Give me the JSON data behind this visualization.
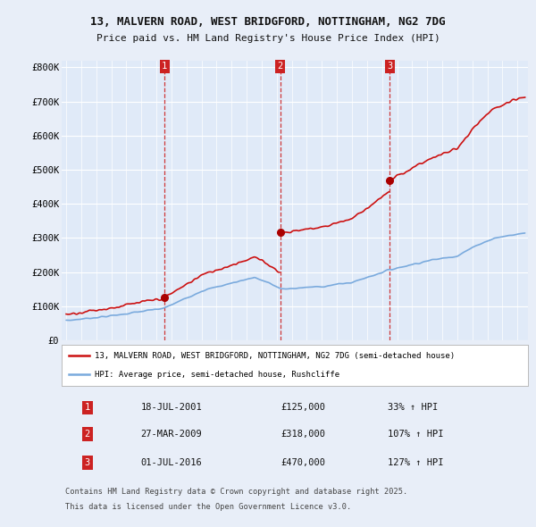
{
  "title1": "13, MALVERN ROAD, WEST BRIDGFORD, NOTTINGHAM, NG2 7DG",
  "title2": "Price paid vs. HM Land Registry's House Price Index (HPI)",
  "ylim": [
    0,
    820000
  ],
  "yticks": [
    0,
    100000,
    200000,
    300000,
    400000,
    500000,
    600000,
    700000,
    800000
  ],
  "ytick_labels": [
    "£0",
    "£100K",
    "£200K",
    "£300K",
    "£400K",
    "£500K",
    "£600K",
    "£700K",
    "£800K"
  ],
  "xlim_start": 1994.7,
  "xlim_end": 2025.7,
  "background_color": "#e8eef8",
  "plot_bg_color": "#e0eaf8",
  "grid_color": "#ffffff",
  "hpi_color": "#7aaadd",
  "price_color": "#cc1111",
  "sale_marker_color": "#aa0000",
  "dashed_line_color": "#cc2222",
  "legend_label_price": "13, MALVERN ROAD, WEST BRIDGFORD, NOTTINGHAM, NG2 7DG (semi-detached house)",
  "legend_label_hpi": "HPI: Average price, semi-detached house, Rushcliffe",
  "sales": [
    {
      "num": 1,
      "date_year": 2001.54,
      "price": 125000,
      "label": "18-JUL-2001",
      "pct": "33%",
      "x_line": 2001.54
    },
    {
      "num": 2,
      "date_year": 2009.23,
      "price": 318000,
      "label": "27-MAR-2009",
      "pct": "107%",
      "x_line": 2009.23
    },
    {
      "num": 3,
      "date_year": 2016.5,
      "price": 470000,
      "label": "01-JUL-2016",
      "pct": "127%",
      "x_line": 2016.5
    }
  ],
  "footer_line1": "Contains HM Land Registry data © Crown copyright and database right 2025.",
  "footer_line2": "This data is licensed under the Open Government Licence v3.0.",
  "table_rows": [
    {
      "num": 1,
      "date": "18-JUL-2001",
      "price": "£125,000",
      "pct": "33% ↑ HPI"
    },
    {
      "num": 2,
      "date": "27-MAR-2009",
      "price": "£318,000",
      "pct": "107% ↑ HPI"
    },
    {
      "num": 3,
      "date": "01-JUL-2016",
      "price": "£470,000",
      "pct": "127% ↑ HPI"
    }
  ]
}
